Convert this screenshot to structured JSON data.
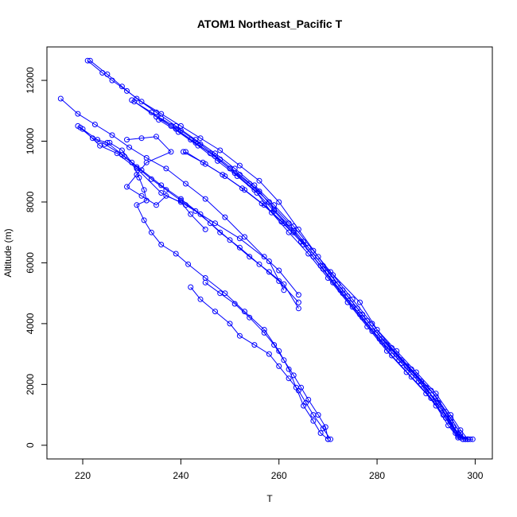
{
  "chart_data": {
    "type": "scatter",
    "title": "ATOM1 Northeast_Pacific T",
    "xlabel": "T",
    "ylabel": "Altitude (m)",
    "xlim": [
      212.7,
      303.5
    ],
    "ylim": [
      -450,
      13100
    ],
    "xticks": [
      220,
      240,
      260,
      280,
      300
    ],
    "yticks": [
      0,
      2000,
      4000,
      6000,
      8000,
      10000,
      12000
    ],
    "grid": false,
    "color": "#0000ff",
    "marker": "open-circle",
    "series": [
      {
        "values": [
          [
            221,
            12650
          ],
          [
            224,
            12250
          ],
          [
            226,
            12000
          ],
          [
            229,
            11650
          ],
          [
            232,
            11300
          ],
          [
            236,
            10900
          ],
          [
            240,
            10500
          ],
          [
            244,
            10100
          ],
          [
            248,
            9700
          ],
          [
            252,
            9200
          ],
          [
            256,
            8700
          ],
          [
            260,
            8000
          ],
          [
            264,
            7100
          ],
          [
            268,
            6200
          ],
          [
            272,
            5300
          ],
          [
            276,
            4500
          ],
          [
            280,
            3700
          ],
          [
            284,
            3000
          ],
          [
            288,
            2300
          ],
          [
            292,
            1600
          ],
          [
            295,
            900
          ],
          [
            297,
            400
          ],
          [
            298,
            200
          ],
          [
            299,
            200
          ]
        ]
      },
      {
        "values": [
          [
            221.5,
            12650
          ],
          [
            225,
            12200
          ],
          [
            228,
            11800
          ],
          [
            231,
            11400
          ],
          [
            235,
            10950
          ],
          [
            239,
            10500
          ],
          [
            243,
            10050
          ],
          [
            247,
            9600
          ],
          [
            251,
            9100
          ],
          [
            255,
            8550
          ],
          [
            259,
            7900
          ],
          [
            263,
            7200
          ],
          [
            267,
            6400
          ],
          [
            271,
            5600
          ],
          [
            275,
            4800
          ],
          [
            279,
            4000
          ],
          [
            283,
            3200
          ],
          [
            287,
            2500
          ],
          [
            291,
            1800
          ],
          [
            294,
            1100
          ],
          [
            296,
            500
          ],
          [
            297.5,
            200
          ],
          [
            298.5,
            200
          ]
        ]
      },
      {
        "values": [
          [
            230,
            11350
          ],
          [
            234,
            10950
          ],
          [
            238,
            10500
          ],
          [
            242,
            10050
          ],
          [
            246,
            9600
          ],
          [
            250,
            9100
          ],
          [
            254,
            8600
          ],
          [
            258,
            8000
          ],
          [
            262,
            7300
          ],
          [
            265,
            6700
          ],
          [
            269,
            5900
          ],
          [
            273,
            5100
          ],
          [
            277,
            4300
          ],
          [
            281,
            3500
          ],
          [
            285,
            2800
          ],
          [
            289,
            2100
          ],
          [
            292,
            1400
          ],
          [
            295,
            800
          ],
          [
            296.5,
            300
          ],
          [
            297.5,
            200
          ]
        ]
      },
      {
        "values": [
          [
            230.5,
            11300
          ],
          [
            235,
            10800
          ],
          [
            239,
            10400
          ],
          [
            243,
            9950
          ],
          [
            247,
            9500
          ],
          [
            251,
            8950
          ],
          [
            255,
            8400
          ],
          [
            259,
            7700
          ],
          [
            263,
            7000
          ],
          [
            266,
            6500
          ],
          [
            270,
            5700
          ],
          [
            274,
            4900
          ],
          [
            278,
            4100
          ],
          [
            282,
            3300
          ],
          [
            286,
            2600
          ],
          [
            290,
            1900
          ],
          [
            293,
            1200
          ],
          [
            295.5,
            600
          ],
          [
            297,
            250
          ],
          [
            298,
            200
          ]
        ]
      },
      {
        "values": [
          [
            235.5,
            10700
          ],
          [
            239.5,
            10300
          ],
          [
            243.5,
            9850
          ],
          [
            247.5,
            9350
          ],
          [
            251.5,
            8850
          ],
          [
            255.5,
            8300
          ],
          [
            258.5,
            7650
          ],
          [
            262,
            7000
          ],
          [
            266,
            6300
          ],
          [
            270,
            5500
          ],
          [
            274,
            4700
          ],
          [
            278,
            3900
          ],
          [
            282,
            3100
          ],
          [
            286,
            2400
          ],
          [
            290,
            1700
          ],
          [
            293.5,
            1000
          ],
          [
            296,
            400
          ],
          [
            298.5,
            200
          ],
          [
            299.5,
            200
          ]
        ]
      },
      {
        "values": [
          [
            236,
            10750
          ],
          [
            240,
            10350
          ],
          [
            244,
            9900
          ],
          [
            248,
            9400
          ],
          [
            252,
            8900
          ],
          [
            256,
            8350
          ],
          [
            259,
            7750
          ],
          [
            263,
            7050
          ],
          [
            267,
            6200
          ],
          [
            271,
            5350
          ],
          [
            275,
            4550
          ],
          [
            279,
            3750
          ],
          [
            283,
            2950
          ],
          [
            287,
            2250
          ],
          [
            291,
            1550
          ],
          [
            294,
            900
          ],
          [
            296.5,
            350
          ],
          [
            298,
            200
          ]
        ]
      },
      {
        "values": [
          [
            240.5,
            9650
          ],
          [
            244.5,
            9300
          ],
          [
            248.5,
            8900
          ],
          [
            252.5,
            8450
          ],
          [
            256.5,
            7950
          ],
          [
            260.5,
            7350
          ],
          [
            264.5,
            6700
          ],
          [
            268.5,
            5900
          ],
          [
            272.5,
            5100
          ],
          [
            276.5,
            4300
          ],
          [
            280.5,
            3500
          ],
          [
            284.5,
            2800
          ],
          [
            288.5,
            2100
          ],
          [
            292.5,
            1400
          ],
          [
            295,
            750
          ],
          [
            297,
            300
          ]
        ]
      },
      {
        "values": [
          [
            241,
            9650
          ],
          [
            245,
            9250
          ],
          [
            249,
            8850
          ],
          [
            253,
            8400
          ],
          [
            257,
            7900
          ],
          [
            261,
            7300
          ],
          [
            265,
            6600
          ],
          [
            269,
            5800
          ],
          [
            273,
            5000
          ],
          [
            277,
            4200
          ],
          [
            281,
            3400
          ],
          [
            285,
            2700
          ],
          [
            289,
            2000
          ],
          [
            292,
            1300
          ],
          [
            294.5,
            650
          ],
          [
            296.5,
            250
          ]
        ]
      },
      {
        "values": [
          [
            270.5,
            5700
          ],
          [
            276.5,
            4700
          ],
          [
            280,
            3800
          ],
          [
            284,
            3100
          ],
          [
            288,
            2400
          ],
          [
            292,
            1700
          ],
          [
            295,
            1000
          ],
          [
            297,
            500
          ],
          [
            298.5,
            200
          ]
        ]
      },
      {
        "values": [
          [
            215.5,
            11400
          ],
          [
            219,
            10900
          ],
          [
            222.5,
            10550
          ],
          [
            226,
            10200
          ],
          [
            229.5,
            9800
          ],
          [
            233,
            9450
          ],
          [
            237,
            9100
          ],
          [
            241,
            8600
          ],
          [
            245,
            8100
          ],
          [
            249,
            7500
          ],
          [
            253,
            6850
          ],
          [
            257,
            6200
          ],
          [
            260,
            5750
          ],
          [
            264,
            4950
          ]
        ]
      },
      {
        "values": [
          [
            219,
            10500
          ],
          [
            222,
            10100
          ],
          [
            224.5,
            9900
          ],
          [
            228,
            9550
          ],
          [
            231,
            9150
          ],
          [
            234,
            8750
          ],
          [
            237,
            8400
          ],
          [
            240,
            8050
          ],
          [
            243,
            7700
          ],
          [
            246,
            7300
          ],
          [
            250,
            6750
          ],
          [
            254,
            6200
          ],
          [
            258,
            5700
          ],
          [
            261,
            5300
          ],
          [
            264,
            4500
          ]
        ]
      },
      {
        "values": [
          [
            219.5,
            10450
          ],
          [
            223,
            10050
          ],
          [
            225,
            9950
          ],
          [
            228.5,
            9500
          ],
          [
            232,
            9050
          ],
          [
            236,
            8550
          ],
          [
            240,
            8100
          ],
          [
            244,
            7600
          ],
          [
            248,
            7000
          ],
          [
            252,
            6500
          ],
          [
            256,
            5950
          ],
          [
            260,
            5400
          ],
          [
            264,
            4700
          ]
        ]
      },
      {
        "values": [
          [
            220,
            10400
          ],
          [
            223.5,
            9850
          ],
          [
            227,
            9600
          ],
          [
            231,
            9100
          ],
          [
            236,
            8300
          ],
          [
            241,
            7900
          ],
          [
            247,
            7300
          ],
          [
            252,
            6800
          ],
          [
            258,
            6050
          ],
          [
            261,
            5100
          ]
        ]
      },
      {
        "values": [
          [
            229,
            10050
          ],
          [
            232,
            10100
          ],
          [
            235,
            10150
          ],
          [
            238,
            9650
          ],
          [
            233,
            9300
          ],
          [
            231,
            8900
          ],
          [
            229,
            8500
          ],
          [
            232,
            8200
          ],
          [
            235,
            7900
          ],
          [
            237,
            8200
          ],
          [
            240,
            8000
          ],
          [
            242,
            7600
          ],
          [
            245,
            7100
          ]
        ]
      },
      {
        "values": [
          [
            225.5,
            9950
          ],
          [
            228,
            9700
          ],
          [
            230,
            9300
          ],
          [
            231.5,
            8800
          ],
          [
            232.5,
            8400
          ],
          [
            233,
            8050
          ],
          [
            231,
            7900
          ],
          [
            232.5,
            7400
          ],
          [
            234,
            7000
          ],
          [
            236,
            6600
          ],
          [
            239,
            6300
          ],
          [
            241.5,
            5950
          ],
          [
            245,
            5500
          ],
          [
            249,
            5000
          ],
          [
            253,
            4400
          ],
          [
            257,
            3800
          ],
          [
            260,
            3100
          ],
          [
            262,
            2500
          ],
          [
            263.5,
            1900
          ],
          [
            265,
            1300
          ],
          [
            267,
            800
          ],
          [
            268.5,
            400
          ],
          [
            270,
            200
          ]
        ]
      },
      {
        "values": [
          [
            242,
            5200
          ],
          [
            244,
            4800
          ],
          [
            247,
            4400
          ],
          [
            250,
            4000
          ],
          [
            252,
            3600
          ],
          [
            255,
            3300
          ],
          [
            258,
            3000
          ],
          [
            260,
            2600
          ],
          [
            262,
            2200
          ],
          [
            264,
            1800
          ],
          [
            265.5,
            1400
          ],
          [
            267,
            1000
          ],
          [
            269,
            550
          ],
          [
            270.5,
            200
          ]
        ]
      },
      {
        "values": [
          [
            245,
            5350
          ],
          [
            248,
            5000
          ],
          [
            251,
            4650
          ],
          [
            254,
            4200
          ],
          [
            257,
            3700
          ],
          [
            259,
            3300
          ],
          [
            261,
            2800
          ],
          [
            263,
            2300
          ],
          [
            264.5,
            1900
          ],
          [
            266,
            1500
          ],
          [
            268,
            1000
          ],
          [
            269.5,
            600
          ],
          [
            270,
            200
          ]
        ]
      }
    ]
  }
}
